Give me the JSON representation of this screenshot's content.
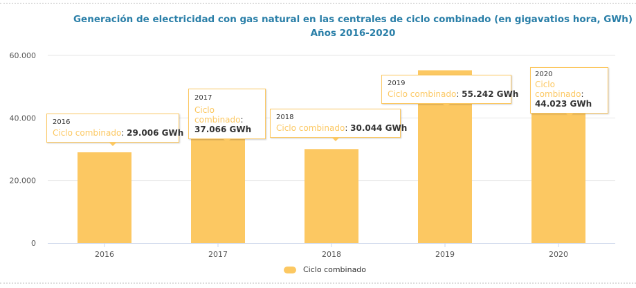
{
  "chart_data": {
    "type": "bar",
    "title": "Generación de electricidad con gas natural en las centrales de ciclo combinado (en gigavatios hora, GWh)",
    "subtitle": "Años 2016-2020",
    "categories": [
      "2016",
      "2017",
      "2018",
      "2019",
      "2020"
    ],
    "series": [
      {
        "name": "Ciclo combinado",
        "values": [
          29006,
          37066,
          30044,
          55242,
          44023
        ],
        "color": "#fcc862"
      }
    ],
    "ylim": [
      0,
      60000
    ],
    "yticks": [
      {
        "v": 0,
        "label": "0"
      },
      {
        "v": 20000,
        "label": "20.000"
      },
      {
        "v": 40000,
        "label": "40.000"
      },
      {
        "v": 60000,
        "label": "60.000"
      }
    ],
    "grid": true,
    "legend": "bottom-center",
    "tooltips": [
      {
        "year": "2016",
        "label": "Ciclo combinado",
        "value": "29.006 GWh"
      },
      {
        "year": "2017",
        "label": "Ciclo combinado",
        "value": "37.066 GWh"
      },
      {
        "year": "2018",
        "label": "Ciclo combinado",
        "value": "30.044 GWh"
      },
      {
        "year": "2019",
        "label": "Ciclo combinado",
        "value": "55.242 GWh"
      },
      {
        "year": "2020",
        "label": "Ciclo combinado",
        "value": "44.023 GWh"
      }
    ]
  }
}
